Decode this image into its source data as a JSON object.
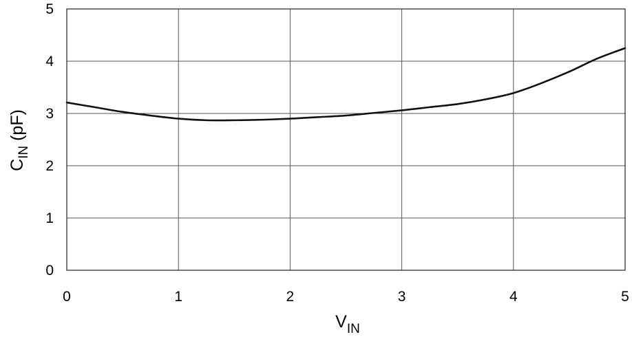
{
  "chart_data": {
    "type": "line",
    "title": "",
    "xlabel": {
      "main": "V",
      "sub": "IN"
    },
    "ylabel": {
      "main": "C",
      "sub": "IN",
      "unit": " (pF)"
    },
    "xlim": [
      0,
      5
    ],
    "ylim": [
      0,
      5
    ],
    "x_ticks": [
      "0",
      "1",
      "2",
      "3",
      "4",
      "5"
    ],
    "y_ticks": [
      "0",
      "1",
      "2",
      "3",
      "4",
      "5"
    ],
    "grid": true,
    "line_color": "#111111",
    "grid_color": "#555555",
    "series": [
      {
        "x": [
          0,
          0.25,
          0.5,
          0.75,
          1.0,
          1.25,
          1.5,
          1.75,
          2.0,
          2.25,
          2.5,
          2.75,
          3.0,
          3.25,
          3.5,
          3.75,
          4.0,
          4.25,
          4.5,
          4.75,
          5.0
        ],
        "values": [
          3.21,
          3.12,
          3.03,
          2.96,
          2.9,
          2.87,
          2.87,
          2.88,
          2.9,
          2.93,
          2.96,
          3.01,
          3.06,
          3.12,
          3.18,
          3.27,
          3.39,
          3.58,
          3.8,
          4.05,
          4.25
        ]
      }
    ]
  }
}
